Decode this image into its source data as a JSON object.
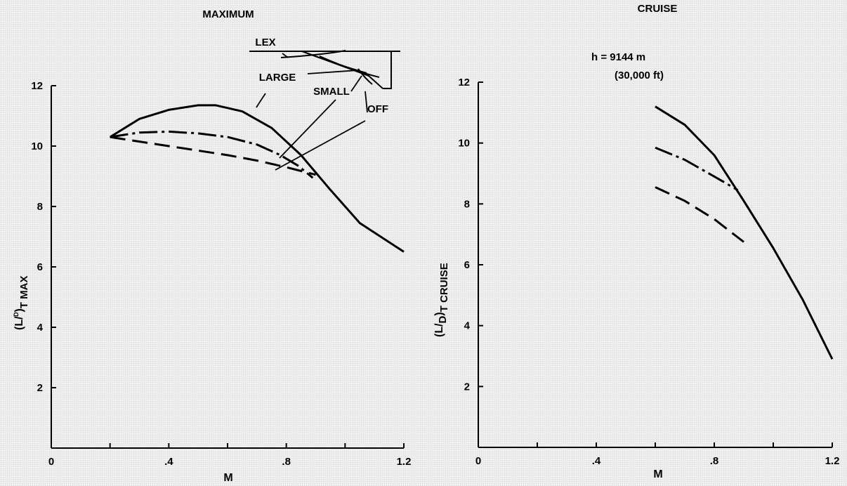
{
  "chart_data": [
    {
      "type": "line",
      "title": "MAXIMUM",
      "xlabel": "M",
      "ylabel_main": "(L/",
      "ylabel_sub_d": "ᴰ",
      "ylabel_paren": ")",
      "ylabel_sub": "T MAX",
      "xlim": [
        0,
        1.2
      ],
      "ylim": [
        0,
        12
      ],
      "x_ticks": [
        0,
        0.2,
        0.4,
        0.6,
        0.8,
        1.0,
        1.2
      ],
      "x_tick_labels": [
        "0",
        "",
        ".4",
        "",
        ".8",
        "",
        "1.2"
      ],
      "y_ticks": [
        0,
        2,
        4,
        6,
        8,
        10,
        12
      ],
      "y_tick_labels": [
        "",
        "2",
        "4",
        "6",
        "8",
        "10",
        "12"
      ],
      "grid": false,
      "series": [
        {
          "name": "LARGE",
          "style": "solid",
          "x": [
            0.2,
            0.3,
            0.4,
            0.5,
            0.56,
            0.65,
            0.75,
            0.85,
            0.95,
            1.05,
            1.2
          ],
          "y": [
            10.3,
            10.9,
            11.2,
            11.35,
            11.35,
            11.15,
            10.6,
            9.7,
            8.55,
            7.45,
            6.5
          ]
        },
        {
          "name": "SMALL",
          "style": "dash-dot",
          "x": [
            0.2,
            0.3,
            0.4,
            0.5,
            0.6,
            0.7,
            0.78,
            0.84,
            0.89
          ],
          "y": [
            10.3,
            10.45,
            10.48,
            10.42,
            10.3,
            10.05,
            9.7,
            9.35,
            8.95
          ]
        },
        {
          "name": "OFF",
          "style": "dashed",
          "x": [
            0.2,
            0.3,
            0.4,
            0.5,
            0.6,
            0.7,
            0.8,
            0.9
          ],
          "y": [
            10.3,
            10.15,
            10.0,
            9.85,
            9.7,
            9.52,
            9.3,
            9.05
          ]
        }
      ],
      "annotations": {
        "legend_title": "LEX",
        "large": "LARGE",
        "small": "SMALL",
        "off": "OFF"
      }
    },
    {
      "type": "line",
      "title": "CRUISE",
      "xlabel": "M",
      "ylabel_main": "(L/",
      "ylabel_sub_d": "D",
      "ylabel_paren": ")",
      "ylabel_sub": "T CRUISE",
      "xlim": [
        0,
        1.2
      ],
      "ylim": [
        0,
        12
      ],
      "x_ticks": [
        0,
        0.2,
        0.4,
        0.6,
        0.8,
        1.0,
        1.2
      ],
      "x_tick_labels": [
        "0",
        "",
        ".4",
        "",
        ".8",
        "",
        "1.2"
      ],
      "y_ticks": [
        0,
        2,
        4,
        6,
        8,
        10,
        12
      ],
      "y_tick_labels": [
        "",
        "2",
        "4",
        "6",
        "8",
        "10",
        "12"
      ],
      "grid": false,
      "annotations": {
        "altitude": "h = 9144 m",
        "altitude_ft": "(30,000 ft)"
      },
      "series": [
        {
          "name": "LARGE",
          "style": "solid",
          "x": [
            0.6,
            0.7,
            0.8,
            0.9,
            1.0,
            1.1,
            1.2
          ],
          "y": [
            11.2,
            10.6,
            9.6,
            8.1,
            6.55,
            4.85,
            2.9
          ]
        },
        {
          "name": "SMALL",
          "style": "dash-dot",
          "x": [
            0.6,
            0.7,
            0.8,
            0.88
          ],
          "y": [
            9.85,
            9.45,
            8.9,
            8.45
          ]
        },
        {
          "name": "OFF",
          "style": "dashed",
          "x": [
            0.6,
            0.7,
            0.8,
            0.9
          ],
          "y": [
            8.55,
            8.1,
            7.5,
            6.75
          ]
        }
      ]
    }
  ]
}
